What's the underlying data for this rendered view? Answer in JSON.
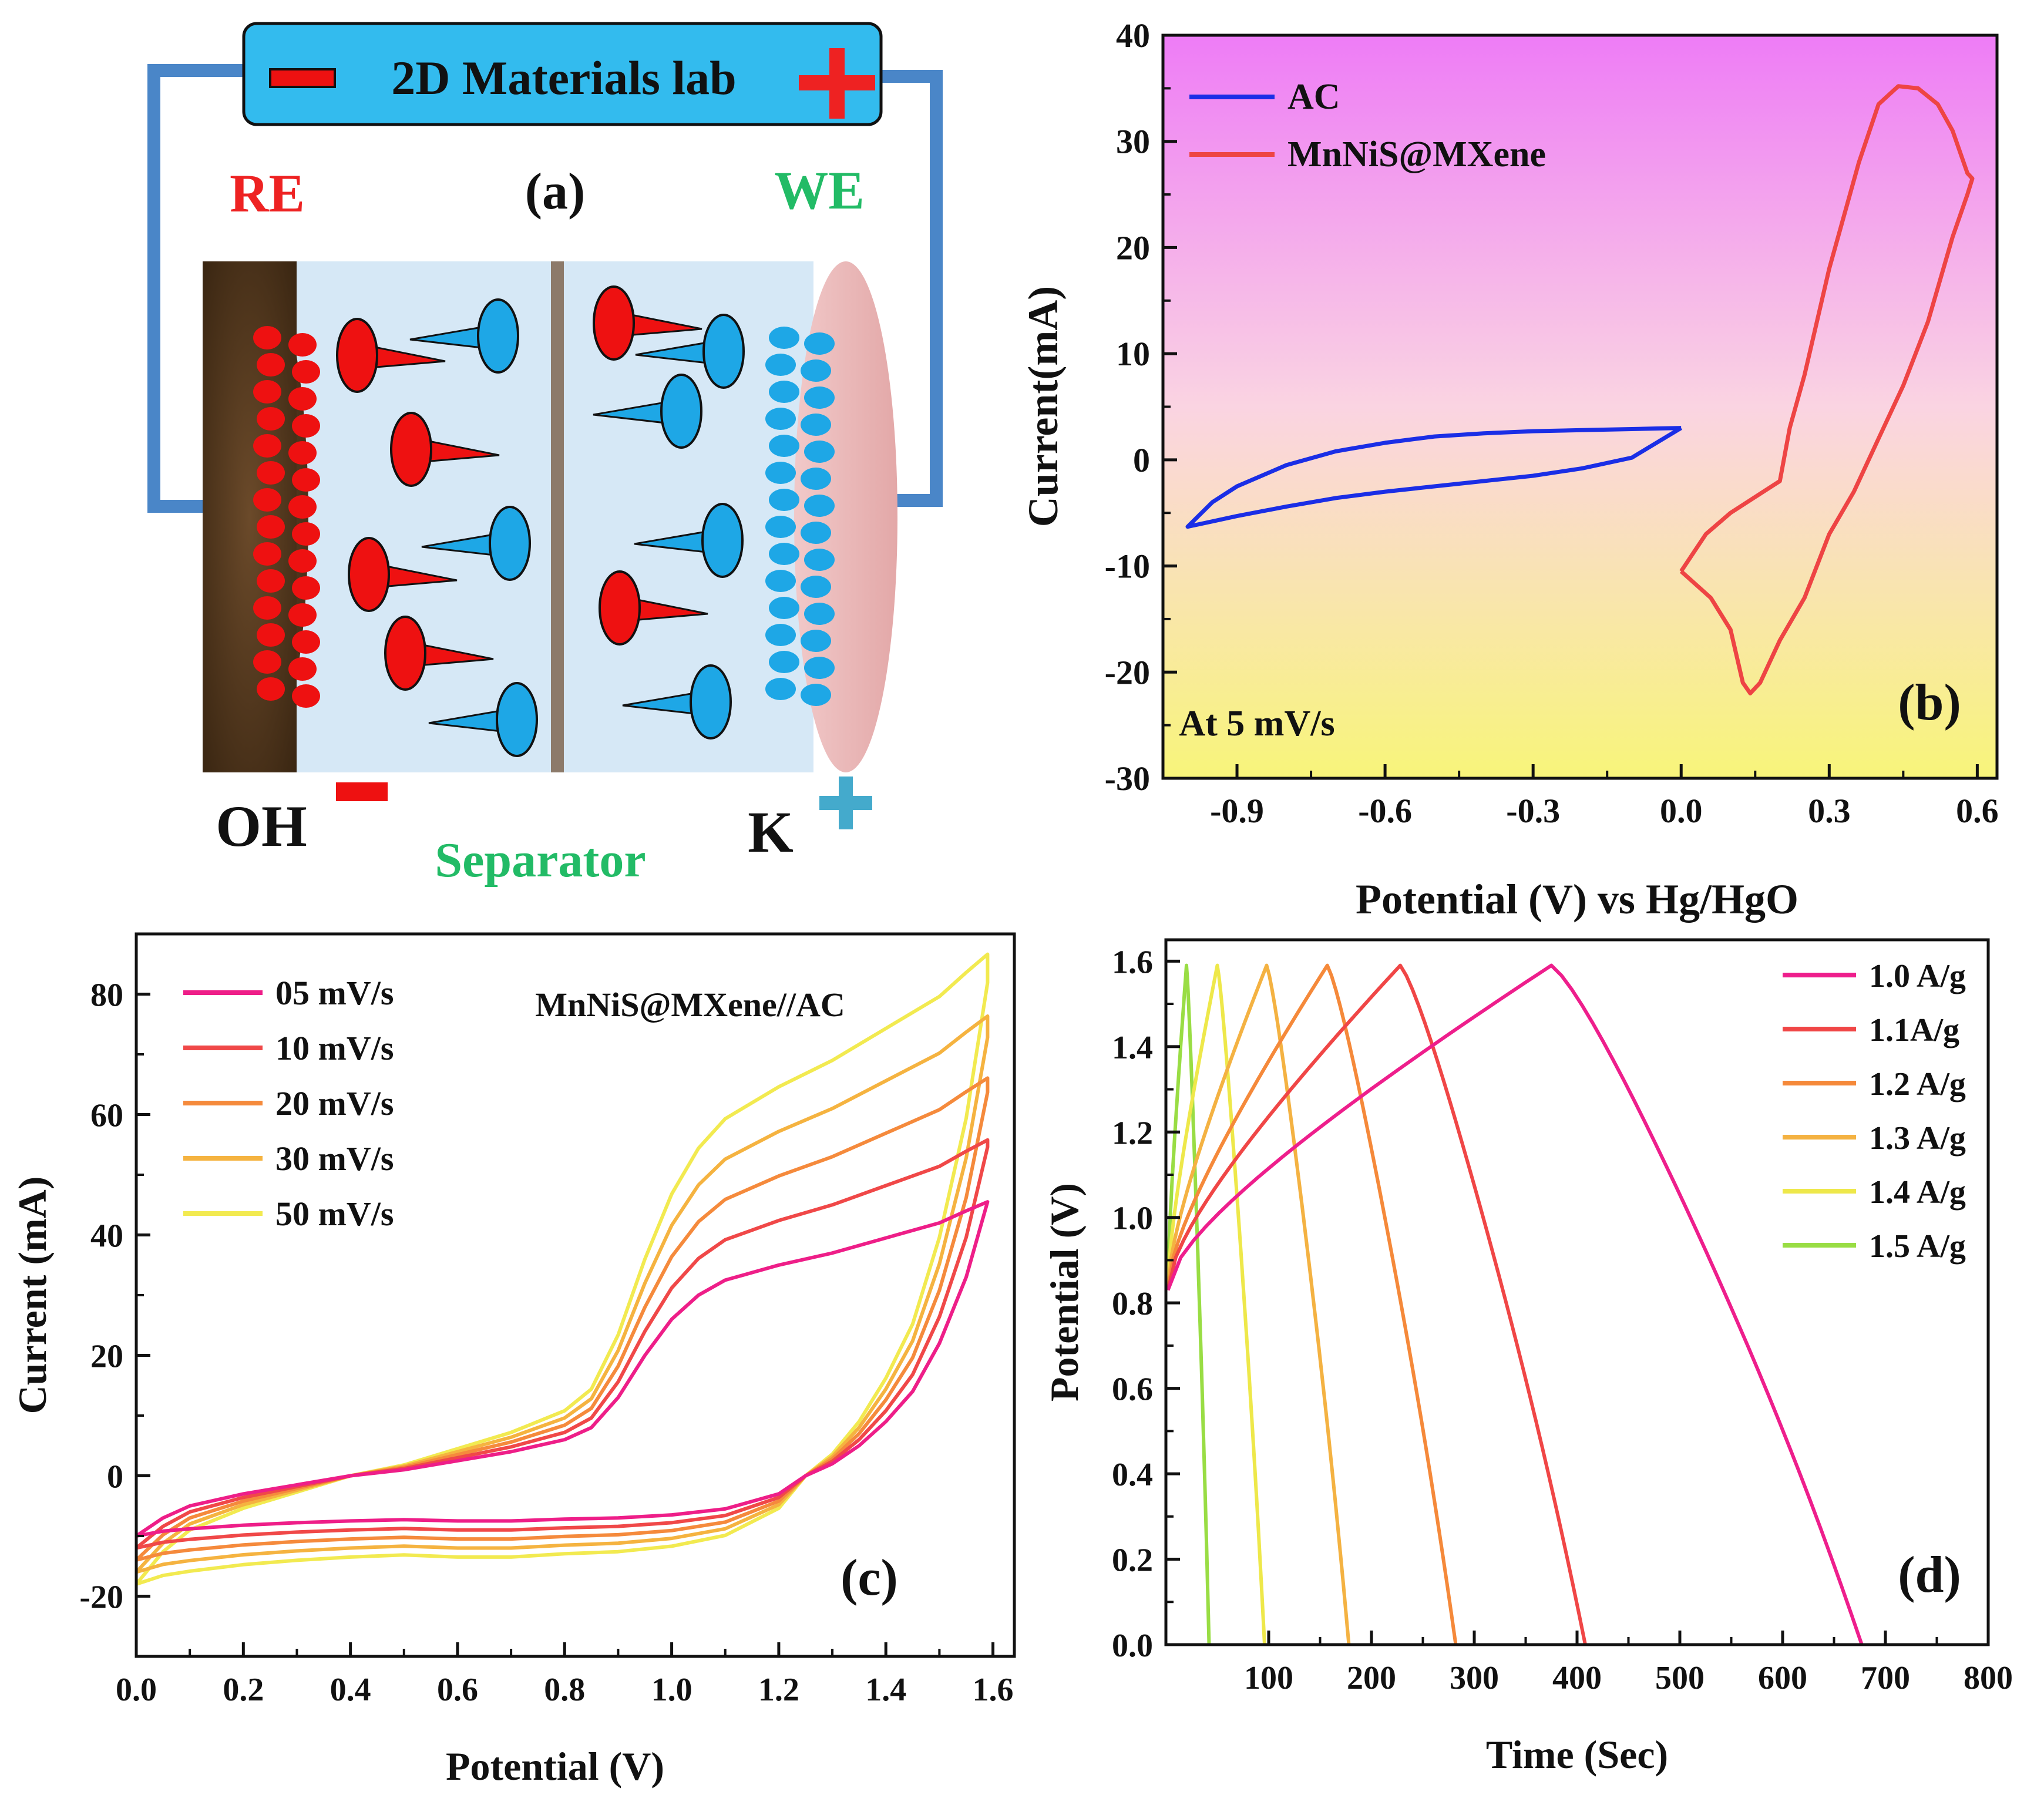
{
  "panel_a": {
    "battery_label": "2D Materials lab",
    "tag": "(a)",
    "re_label": "RE",
    "we_label": "WE",
    "oh_label": "OH",
    "k_label": "K",
    "separator_label": "Separator",
    "colors": {
      "anion": "#ee1111",
      "cation": "#1ea7e6",
      "battery": "#33bbee",
      "wire": "#4a86c8",
      "we_text": "#22bb66",
      "re_text": "#ee2222"
    }
  },
  "chart_data": [
    {
      "panel": "b",
      "type": "line",
      "tag": "(b)",
      "annotation": "At 5 mV/s",
      "xlabel": "Potential (V) vs Hg/HgO",
      "ylabel": "Current(mA)",
      "xlim": [
        -1.05,
        0.64
      ],
      "ylim": [
        -30,
        40
      ],
      "xticks": [
        "-0.9",
        "-0.6",
        "-0.3",
        "0.0",
        "0.3",
        "0.6"
      ],
      "xtick_values": [
        -0.9,
        -0.6,
        -0.3,
        0.0,
        0.3,
        0.6
      ],
      "yticks": [
        "-30",
        "-20",
        "-10",
        "0",
        "10",
        "20",
        "30",
        "40"
      ],
      "ytick_values": [
        -30,
        -20,
        -10,
        0,
        10,
        20,
        30,
        40
      ],
      "legend_position": "top-left",
      "series": [
        {
          "name": "AC",
          "color": "#1a2ee6",
          "x": [
            0.0,
            -0.1,
            -0.2,
            -0.3,
            -0.4,
            -0.5,
            -0.6,
            -0.7,
            -0.8,
            -0.9,
            -0.95,
            -1.0,
            -0.95,
            -0.9,
            -0.8,
            -0.7,
            -0.6,
            -0.5,
            -0.4,
            -0.3,
            -0.2,
            -0.1,
            -0.05,
            0.0
          ],
          "y": [
            3.0,
            0.2,
            -0.8,
            -1.5,
            -2.0,
            -2.5,
            -3.0,
            -3.6,
            -4.4,
            -5.3,
            -5.8,
            -6.3,
            -4.0,
            -2.5,
            -0.5,
            0.8,
            1.6,
            2.2,
            2.5,
            2.7,
            2.8,
            2.9,
            2.95,
            3.0
          ]
        },
        {
          "name": "MnNiS@MXene",
          "color": "#ee4444",
          "x": [
            0.0,
            0.06,
            0.1,
            0.125,
            0.14,
            0.16,
            0.2,
            0.25,
            0.3,
            0.35,
            0.4,
            0.45,
            0.5,
            0.55,
            0.58,
            0.59,
            0.58,
            0.55,
            0.52,
            0.48,
            0.44,
            0.4,
            0.36,
            0.3,
            0.25,
            0.22,
            0.2,
            0.15,
            0.1,
            0.05,
            0.0
          ],
          "y": [
            -10.5,
            -13.0,
            -16.0,
            -21.0,
            -22.0,
            -21.0,
            -17.0,
            -13.0,
            -7.0,
            -3.0,
            2.0,
            7.0,
            13.0,
            21.0,
            25.0,
            26.5,
            27.0,
            31.0,
            33.5,
            35.0,
            35.2,
            33.5,
            28.0,
            18.0,
            8.0,
            3.0,
            -2.0,
            -3.5,
            -5.0,
            -7.0,
            -10.5
          ]
        }
      ]
    },
    {
      "panel": "c",
      "type": "line",
      "tag": "(c)",
      "annotation": "MnNiS@MXene//AC",
      "xlabel": "Potential (V)",
      "ylabel": "Current (mA)",
      "xlim": [
        0.0,
        1.64
      ],
      "ylim": [
        -30,
        90
      ],
      "xticks": [
        "0.0",
        "0.2",
        "0.4",
        "0.6",
        "0.8",
        "1.0",
        "1.2",
        "1.4",
        "1.6"
      ],
      "xtick_values": [
        0.0,
        0.2,
        0.4,
        0.6,
        0.8,
        1.0,
        1.2,
        1.4,
        1.6
      ],
      "yticks": [
        "-20",
        "0",
        "20",
        "40",
        "60",
        "80"
      ],
      "ytick_values": [
        -20,
        0,
        20,
        40,
        60,
        80
      ],
      "legend_position": "top-left",
      "series": [
        {
          "name": "05 mV/s",
          "color": "#ee1e88",
          "scale": 1.0
        },
        {
          "name": "10 mV/s",
          "color": "#f04848",
          "scale": 1.2
        },
        {
          "name": "20 mV/s",
          "color": "#f58a3c",
          "scale": 1.4
        },
        {
          "name": "30 mV/s",
          "color": "#f5b340",
          "scale": 1.6
        },
        {
          "name": "50 mV/s",
          "color": "#f2ea50",
          "scale": 1.8
        }
      ]
    },
    {
      "panel": "d",
      "type": "line",
      "tag": "(d)",
      "xlabel": "Time (Sec)",
      "ylabel": "Potential (V)",
      "xlim": [
        0,
        800
      ],
      "ylim": [
        0.0,
        1.65
      ],
      "xticks": [
        "100",
        "200",
        "300",
        "400",
        "500",
        "600",
        "700",
        "800"
      ],
      "xtick_values": [
        100,
        200,
        300,
        400,
        500,
        600,
        700,
        800
      ],
      "yticks": [
        "0.0",
        "0.2",
        "0.4",
        "0.6",
        "0.8",
        "1.0",
        "1.2",
        "1.4",
        "1.6"
      ],
      "ytick_values": [
        0.0,
        0.2,
        0.4,
        0.6,
        0.8,
        1.0,
        1.2,
        1.4,
        1.6
      ],
      "legend_position": "top-right",
      "series": [
        {
          "name": "1.0 A/g",
          "color": "#ee1e8c",
          "peak_time": 375,
          "end_time": 677
        },
        {
          "name": "1.1A/g",
          "color": "#f04646",
          "peak_time": 228,
          "end_time": 408
        },
        {
          "name": "1.2 A/g",
          "color": "#f5893a",
          "peak_time": 157,
          "end_time": 282
        },
        {
          "name": "1.3 A/g",
          "color": "#f4b242",
          "peak_time": 98,
          "end_time": 178
        },
        {
          "name": "1.4 A/g",
          "color": "#eee84a",
          "peak_time": 50,
          "end_time": 96
        },
        {
          "name": "1.5 A/g",
          "color": "#99dd44",
          "peak_time": 20,
          "end_time": 42
        }
      ]
    }
  ]
}
